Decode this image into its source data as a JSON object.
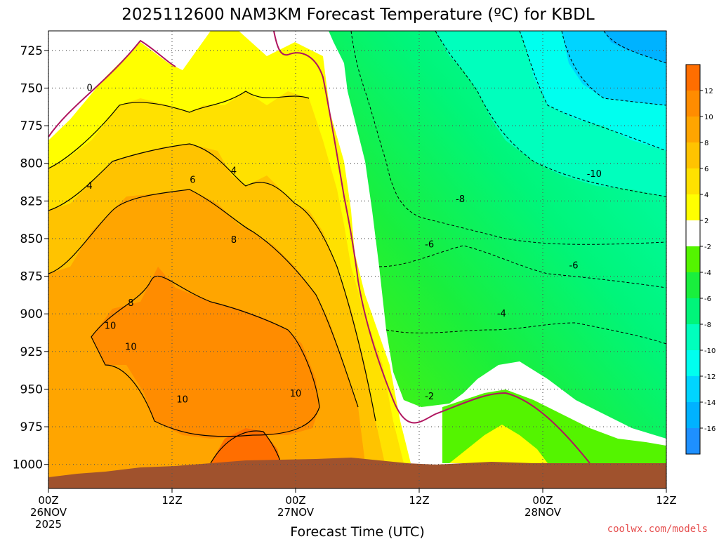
{
  "chart_data": {
    "type": "heatmap",
    "title": "2025112600 NAM3KM Forecast Temperature (ºC) for KBDL",
    "xlabel": "Forecast Time (UTC)",
    "ylabel": "",
    "y_ticks": [
      "725",
      "750",
      "775",
      "800",
      "825",
      "850",
      "875",
      "900",
      "925",
      "950",
      "975",
      "1000"
    ],
    "y_values": [
      725,
      750,
      775,
      800,
      825,
      850,
      875,
      900,
      925,
      950,
      975,
      1000
    ],
    "ylim": [
      712,
      1016
    ],
    "x_ticks": [
      {
        "hour": 0,
        "lines": [
          "00Z",
          "26NOV",
          "2025"
        ]
      },
      {
        "hour": 12,
        "lines": [
          "12Z"
        ]
      },
      {
        "hour": 24,
        "lines": [
          "00Z",
          "27NOV"
        ]
      },
      {
        "hour": 36,
        "lines": [
          "12Z"
        ]
      },
      {
        "hour": 48,
        "lines": [
          "00Z",
          "28NOV"
        ]
      },
      {
        "hour": 60,
        "lines": [
          "12Z"
        ]
      }
    ],
    "xlim": [
      0,
      60
    ],
    "colorbar": {
      "levels": [
        -18,
        -16,
        -14,
        -12,
        -10,
        -8,
        -6,
        -4,
        -2,
        2,
        4,
        6,
        8,
        10,
        12,
        14
      ],
      "tick_labels": [
        "-16",
        "-14",
        "-12",
        "-10",
        "-8",
        "-6",
        "-4",
        "-2",
        "2",
        "4",
        "6",
        "8",
        "10",
        "12"
      ],
      "colors": [
        "#1e90ff",
        "#00b2ff",
        "#00d4ff",
        "#00ffef",
        "#00ffbd",
        "#00f57a",
        "#19ef3d",
        "#54f400",
        "#ffffff",
        "#ffff00",
        "#ffe100",
        "#ffc300",
        "#ffa500",
        "#ff8c00",
        "#ff6e00"
      ]
    },
    "contour_labels": [
      {
        "text": "0",
        "hour": 4.0,
        "p": 750
      },
      {
        "text": "4",
        "hour": 4.0,
        "p": 815
      },
      {
        "text": "4",
        "hour": 18.0,
        "p": 805
      },
      {
        "text": "6",
        "hour": 14.0,
        "p": 811
      },
      {
        "text": "8",
        "hour": 18.0,
        "p": 851
      },
      {
        "text": "8",
        "hour": 8.0,
        "p": 893
      },
      {
        "text": "10",
        "hour": 6.0,
        "p": 908
      },
      {
        "text": "10",
        "hour": 8.0,
        "p": 922
      },
      {
        "text": "10",
        "hour": 13.0,
        "p": 957
      },
      {
        "text": "10",
        "hour": 24.0,
        "p": 953
      },
      {
        "text": "-10",
        "hour": 53.0,
        "p": 807
      },
      {
        "text": "-8",
        "hour": 40.0,
        "p": 824
      },
      {
        "text": "-6",
        "hour": 37.0,
        "p": 854
      },
      {
        "text": "-6",
        "hour": 51.0,
        "p": 868
      },
      {
        "text": "-4",
        "hour": 44.0,
        "p": 900
      },
      {
        "text": "-2",
        "hour": 37.0,
        "p": 955
      }
    ],
    "credit": "coolwx.com/models"
  },
  "colors": {
    "ground": "#a0522d",
    "freezing_line": "#b0155f",
    "credit": "#e64e4e",
    "grid": "#555555"
  }
}
